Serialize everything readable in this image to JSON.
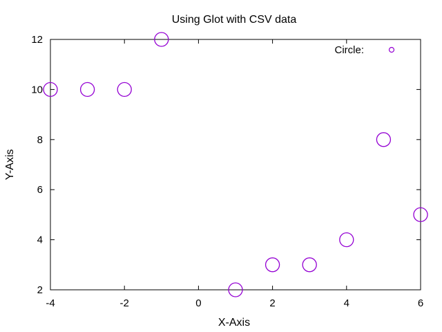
{
  "chart_data": {
    "type": "scatter",
    "title": "Using Glot with CSV data",
    "xlabel": "X-Axis",
    "ylabel": "Y-Axis",
    "xlim": [
      -4,
      6
    ],
    "ylim": [
      2,
      12
    ],
    "xticks": [
      -4,
      -2,
      0,
      2,
      4,
      6
    ],
    "yticks": [
      2,
      4,
      6,
      8,
      10,
      12
    ],
    "grid": false,
    "legend_position": "top-right",
    "marker": "circle",
    "series": [
      {
        "name": "Circle:",
        "color": "#9400d3",
        "x": [
          -4,
          -3,
          -2,
          -1,
          1,
          2,
          3,
          4,
          5,
          6
        ],
        "y": [
          10,
          10,
          10,
          12,
          2,
          3,
          3,
          4,
          8,
          5
        ]
      }
    ]
  }
}
